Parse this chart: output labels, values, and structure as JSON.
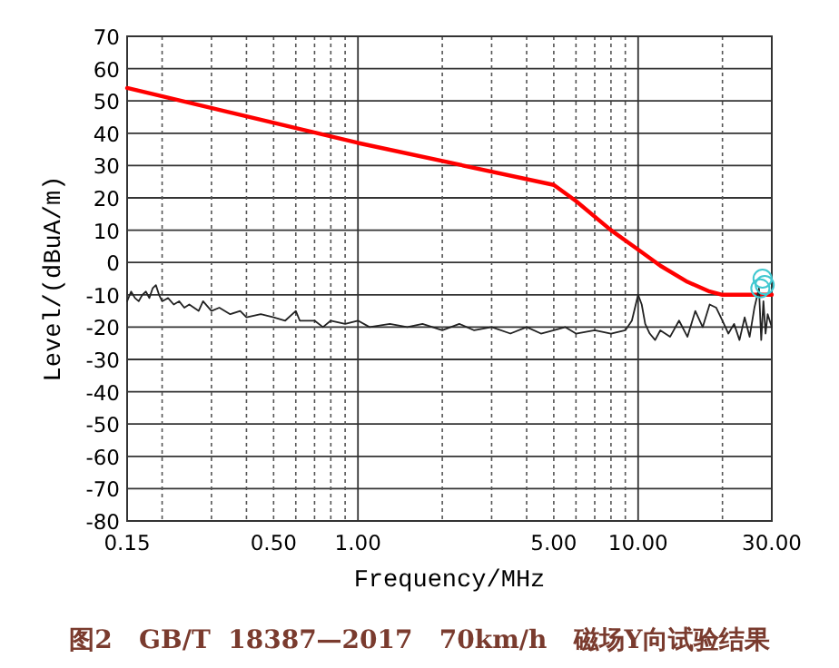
{
  "chart_data": {
    "type": "line",
    "xlabel": "Frequency/MHz",
    "ylabel": "Level/(dBuA/m)",
    "log": "x",
    "grid": true,
    "xlim": [
      0.15,
      30
    ],
    "ylim": [
      -80,
      70
    ],
    "xticks": [
      {
        "value": 0.15,
        "label": "0.15"
      },
      {
        "value": 0.2,
        "label": null
      },
      {
        "value": 0.3,
        "label": null
      },
      {
        "value": 0.4,
        "label": null
      },
      {
        "value": 0.5,
        "label": "0.50"
      },
      {
        "value": 0.6,
        "label": null
      },
      {
        "value": 0.7,
        "label": null
      },
      {
        "value": 0.8,
        "label": null
      },
      {
        "value": 0.9,
        "label": null
      },
      {
        "value": 1,
        "label": "1.00"
      },
      {
        "value": 2,
        "label": null
      },
      {
        "value": 3,
        "label": null
      },
      {
        "value": 4,
        "label": null
      },
      {
        "value": 5,
        "label": "5.00"
      },
      {
        "value": 6,
        "label": null
      },
      {
        "value": 7,
        "label": null
      },
      {
        "value": 8,
        "label": null
      },
      {
        "value": 9,
        "label": null
      },
      {
        "value": 10,
        "label": "10.00"
      },
      {
        "value": 20,
        "label": null
      },
      {
        "value": 30,
        "label": "30.00"
      }
    ],
    "yticks": [
      -80,
      -70,
      -60,
      -50,
      -40,
      -30,
      -20,
      -10,
      0,
      10,
      20,
      30,
      40,
      50,
      60,
      70
    ],
    "series": [
      {
        "type": "line",
        "color": "#ff0000",
        "x": [
          0.15,
          1,
          5,
          6,
          8,
          10,
          12,
          15,
          18,
          20,
          30
        ],
        "values": [
          54,
          37,
          24,
          19,
          10,
          4,
          -1,
          -6,
          -9,
          -10,
          -10
        ]
      },
      {
        "type": "line",
        "color": "#222222",
        "x": [
          0.15,
          0.155,
          0.16,
          0.165,
          0.17,
          0.175,
          0.18,
          0.185,
          0.19,
          0.195,
          0.2,
          0.21,
          0.22,
          0.23,
          0.24,
          0.25,
          0.27,
          0.28,
          0.3,
          0.32,
          0.35,
          0.38,
          0.4,
          0.45,
          0.5,
          0.55,
          0.6,
          0.62,
          0.7,
          0.75,
          0.8,
          0.9,
          1.0,
          1.1,
          1.3,
          1.5,
          1.7,
          2.0,
          2.3,
          2.6,
          3.0,
          3.5,
          4.0,
          4.5,
          5.0,
          5.5,
          6.0,
          7.0,
          8.0,
          9.0,
          9.5,
          10.0,
          10.3,
          10.6,
          11,
          11.5,
          12,
          13,
          14,
          15,
          16,
          17,
          18,
          19,
          20,
          21,
          22,
          23,
          24,
          25,
          26,
          27,
          27.5,
          28,
          28.5,
          29,
          30
        ],
        "values": [
          -12,
          -9,
          -11,
          -12,
          -10,
          -9,
          -11,
          -8,
          -7,
          -10,
          -12,
          -11,
          -13,
          -12,
          -14,
          -13,
          -15,
          -12,
          -15,
          -14,
          -16,
          -15,
          -17,
          -16,
          -17,
          -18,
          -15,
          -18,
          -18,
          -20,
          -18,
          -19,
          -18,
          -20,
          -19,
          -20,
          -19,
          -21,
          -19,
          -21,
          -20,
          -22,
          -20,
          -22,
          -21,
          -20,
          -22,
          -21,
          -22,
          -21,
          -18,
          -10,
          -13,
          -19,
          -22,
          -24,
          -21,
          -23,
          -18,
          -23,
          -15,
          -20,
          -13,
          -14,
          -18,
          -22,
          -19,
          -24,
          -17,
          -23,
          -14,
          -8,
          -24,
          -12,
          -22,
          -16,
          -20
        ]
      },
      {
        "type": "scatter",
        "marker": "circle",
        "color": "#40c8d0",
        "x": [
          27.3,
          27.8,
          28.3
        ],
        "values": [
          -8,
          -5,
          -7
        ]
      }
    ],
    "annotations": [
      "图2   GB/T  18387—2017   70km/h   磁场Y向试验结果"
    ]
  }
}
